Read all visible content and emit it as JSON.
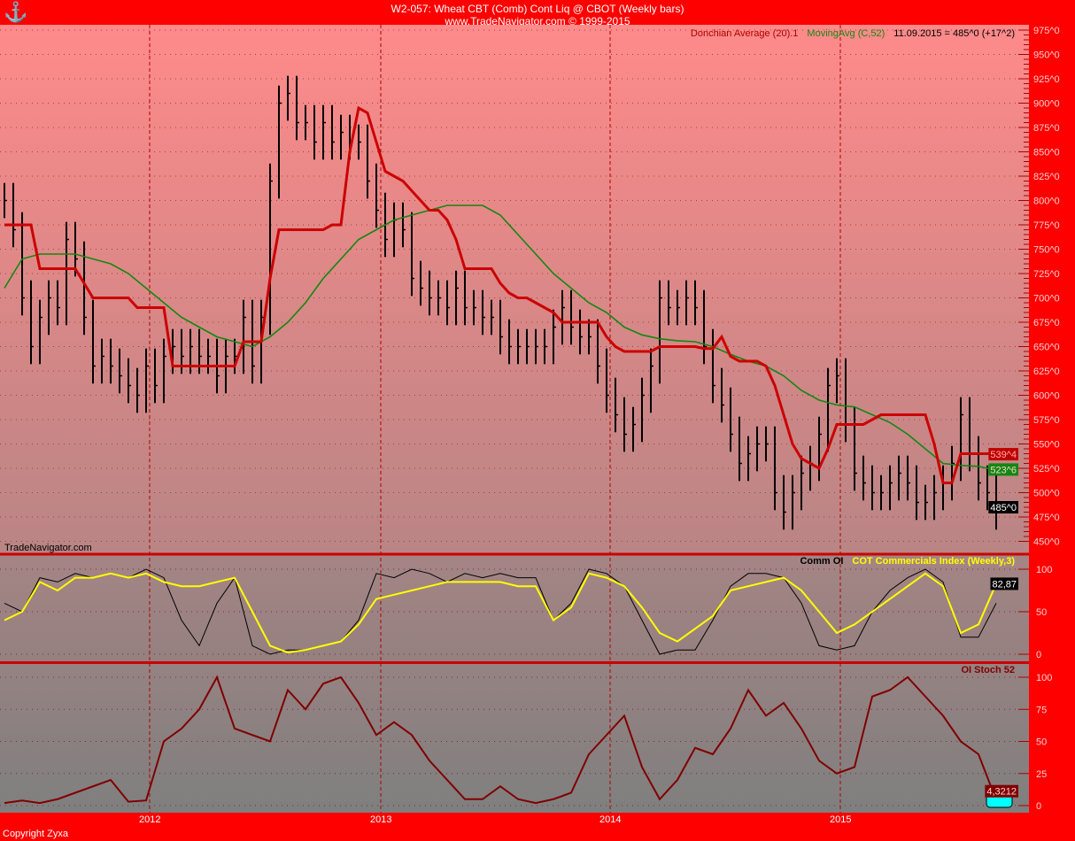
{
  "header": {
    "title": "W2-057:  Wheat CBT (Comb) Cont Liq @ CBOT  (Weekly bars)",
    "subtitle": "www.TradeNavigator.com © 1999-2015",
    "watermark": "TradeNavigator.com",
    "copyright": "Copyright Zyxa"
  },
  "colors": {
    "frame": "#ff0000",
    "price_bars": "#000000",
    "donchian": "#cc0000",
    "moving_avg": "#118811",
    "comm_oi": "#000000",
    "cot_index": "#ffff00",
    "oi_stoch": "#800000"
  },
  "chart_data": [
    {
      "type": "bar",
      "title": "Wheat CBT (Comb) Cont Liq @ CBOT (Weekly bars)",
      "legend": {
        "donchian": "Donchian Average (20).1",
        "ma": "MovingAvg (C,52)",
        "last": "11.09.2015 = 485^0 (+17^2)"
      },
      "x_tick_labels": [
        "2012",
        "2013",
        "2014",
        "2015"
      ],
      "y_ticks": [
        450,
        475,
        500,
        525,
        550,
        575,
        600,
        625,
        650,
        675,
        700,
        725,
        750,
        775,
        800,
        825,
        850,
        875,
        900,
        925,
        950,
        975
      ],
      "y_tick_suffix": "^0",
      "ylim": [
        450,
        975
      ],
      "grid": true,
      "closes": [
        800,
        770,
        700,
        650,
        680,
        700,
        690,
        760,
        740,
        680,
        630,
        640,
        630,
        620,
        610,
        600,
        630,
        610,
        640,
        650,
        640,
        650,
        640,
        640,
        620,
        640,
        640,
        680,
        630,
        680,
        820,
        900,
        910,
        880,
        880,
        860,
        880,
        860,
        870,
        860,
        860,
        820,
        790,
        760,
        780,
        770,
        720,
        710,
        700,
        700,
        690,
        710,
        690,
        690,
        680,
        680,
        660,
        650,
        650,
        650,
        650,
        650,
        670,
        690,
        670,
        660,
        660,
        630,
        600,
        580,
        560,
        570,
        600,
        630,
        700,
        690,
        690,
        700,
        690,
        650,
        610,
        590,
        560,
        530,
        540,
        550,
        550,
        500,
        480,
        500,
        520,
        530,
        560,
        610,
        620,
        570,
        520,
        510,
        500,
        500,
        510,
        520,
        510,
        490,
        490,
        500,
        510,
        530,
        580,
        540,
        510,
        500,
        480
      ],
      "donchian": [
        775,
        775,
        775,
        775,
        730,
        730,
        730,
        730,
        730,
        715,
        700,
        700,
        700,
        700,
        700,
        690,
        690,
        690,
        690,
        630,
        630,
        630,
        630,
        630,
        630,
        630,
        630,
        655,
        655,
        655,
        720,
        770,
        770,
        770,
        770,
        770,
        770,
        775,
        775,
        850,
        895,
        890,
        860,
        830,
        825,
        820,
        810,
        800,
        790,
        790,
        780,
        760,
        730,
        730,
        730,
        730,
        715,
        705,
        700,
        700,
        695,
        690,
        685,
        675,
        675,
        675,
        675,
        675,
        660,
        650,
        645,
        645,
        645,
        645,
        650,
        650,
        650,
        650,
        650,
        648,
        648,
        660,
        640,
        635,
        635,
        635,
        630,
        610,
        580,
        550,
        535,
        530,
        525,
        545,
        570,
        570,
        570,
        570,
        575,
        580,
        580,
        580,
        580,
        580,
        580,
        550,
        510,
        510,
        540,
        540,
        540,
        540,
        540
      ],
      "moving_avg": [
        710,
        740,
        745,
        745,
        745,
        740,
        735,
        725,
        710,
        695,
        680,
        670,
        660,
        655,
        650,
        660,
        675,
        695,
        720,
        740,
        760,
        770,
        780,
        785,
        790,
        795,
        795,
        795,
        785,
        765,
        745,
        725,
        710,
        695,
        685,
        670,
        662,
        658,
        656,
        655,
        650,
        642,
        635,
        630,
        620,
        605,
        595,
        590,
        588,
        580,
        572,
        560,
        545,
        530,
        528,
        527,
        523
      ],
      "axis_markers": {
        "donchian": "539^4",
        "moving_avg": "523^6",
        "last": "485^0"
      }
    },
    {
      "type": "line",
      "legend": {
        "comm_oi": "Comm OI",
        "cot": "COT Commercials Index (Weekly,3)"
      },
      "y_ticks": [
        0,
        50,
        100
      ],
      "ylim": [
        0,
        100
      ],
      "comm_oi": [
        60,
        50,
        90,
        85,
        95,
        90,
        95,
        90,
        100,
        90,
        40,
        10,
        60,
        90,
        10,
        0,
        5,
        5,
        10,
        15,
        40,
        95,
        90,
        100,
        95,
        85,
        95,
        90,
        95,
        90,
        90,
        40,
        60,
        100,
        95,
        80,
        40,
        0,
        5,
        5,
        40,
        80,
        95,
        95,
        90,
        60,
        10,
        5,
        10,
        50,
        75,
        90,
        100,
        85,
        20,
        20,
        60
      ],
      "cot_index": [
        40,
        50,
        85,
        75,
        90,
        90,
        95,
        90,
        95,
        85,
        80,
        80,
        85,
        90,
        50,
        10,
        2,
        5,
        10,
        15,
        35,
        65,
        70,
        75,
        80,
        85,
        85,
        85,
        85,
        80,
        80,
        40,
        55,
        95,
        90,
        80,
        55,
        25,
        15,
        30,
        45,
        75,
        80,
        85,
        90,
        75,
        50,
        25,
        35,
        50,
        65,
        80,
        95,
        80,
        25,
        35,
        82.87
      ],
      "axis_marker": "82,87"
    },
    {
      "type": "line",
      "legend": {
        "oi_stoch": "OI Stoch 52"
      },
      "y_ticks": [
        0,
        25,
        50,
        75,
        100
      ],
      "ylim": [
        0,
        100
      ],
      "oi_stoch": [
        2,
        4,
        2,
        5,
        10,
        15,
        20,
        3,
        4,
        50,
        60,
        75,
        100,
        60,
        55,
        50,
        90,
        75,
        95,
        100,
        80,
        55,
        65,
        55,
        35,
        20,
        5,
        5,
        15,
        5,
        2,
        5,
        10,
        40,
        55,
        70,
        30,
        5,
        20,
        45,
        40,
        60,
        90,
        70,
        80,
        60,
        35,
        25,
        30,
        85,
        90,
        100,
        85,
        70,
        50,
        40,
        4.32
      ],
      "axis_marker": "4,3212"
    }
  ]
}
